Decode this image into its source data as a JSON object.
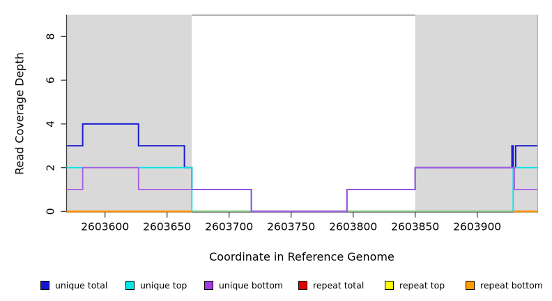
{
  "figure": {
    "xlabel": "Coordinate in Reference Genome",
    "ylabel": "Read Coverage Depth"
  },
  "legend": {
    "items": [
      {
        "label": "unique total",
        "color": "#1515D3"
      },
      {
        "label": "unique top",
        "color": "#00E8E8"
      },
      {
        "label": "unique bottom",
        "color": "#A23BE0"
      },
      {
        "label": "repeat total",
        "color": "#E00000"
      },
      {
        "label": "repeat top",
        "color": "#FFFF00"
      },
      {
        "label": "repeat bottom",
        "color": "#FF9D00"
      }
    ]
  },
  "chart_data": {
    "type": "line",
    "step": true,
    "title": "",
    "xlabel": "Coordinate in Reference Genome",
    "ylabel": "Read Coverage Depth",
    "xlim": [
      2603569,
      2603948.5
    ],
    "ylim": [
      0,
      9
    ],
    "x_ticks": [
      2603600,
      2603650,
      2603700,
      2603750,
      2603800,
      2603850,
      2603900
    ],
    "y_ticks": [
      0,
      2,
      4,
      6,
      8
    ],
    "grid": false,
    "legend_position": "bottom",
    "axis_color": "#3c3c3c",
    "box_top_color": "#888888",
    "shaded_regions": [
      {
        "x0": 2603569,
        "x1": 2603670,
        "color": "#D9D9D9"
      },
      {
        "x0": 2603850,
        "x1": 2603948.5,
        "color": "#D9D9D9"
      }
    ],
    "zero_overlap_line": {
      "x0": 2603670,
      "x1": 2603929,
      "y": 0,
      "color": "#7FCB7F"
    },
    "series": [
      {
        "name": "unique total",
        "color": "#1C1CCF",
        "width": 2,
        "segments": [
          [
            [
              2603569,
              3
            ],
            [
              2603582,
              4
            ],
            [
              2603627,
              3
            ],
            [
              2603664,
              2
            ],
            [
              2603670,
              1
            ],
            [
              2603718,
              0
            ],
            [
              2603795,
              1
            ],
            [
              2603850,
              2
            ],
            [
              2603928,
              3
            ],
            [
              2603929,
              2
            ],
            [
              2603931,
              3
            ],
            [
              2603948.5,
              3
            ]
          ]
        ]
      },
      {
        "name": "unique top",
        "color": "#00E5E5",
        "width": 1.8,
        "segments": [
          [
            [
              2603569,
              2
            ],
            [
              2603670,
              0
            ]
          ],
          [
            [
              2603929,
              0
            ],
            [
              2603929,
              2
            ],
            [
              2603948.5,
              2
            ]
          ]
        ]
      },
      {
        "name": "unique bottom",
        "color": "#A55BE0",
        "width": 1.8,
        "segments": [
          [
            [
              2603569,
              1
            ],
            [
              2603582,
              2
            ],
            [
              2603627,
              1
            ],
            [
              2603718,
              0
            ],
            [
              2603795,
              1
            ],
            [
              2603850,
              2
            ],
            [
              2603930,
              1
            ],
            [
              2603948.5,
              1
            ]
          ]
        ]
      },
      {
        "name": "repeat total",
        "color": "#E00000",
        "width": 1.8,
        "segments": [
          [
            [
              2603569,
              0
            ],
            [
              2603670,
              0
            ]
          ],
          [
            [
              2603929,
              0
            ],
            [
              2603948.5,
              0
            ]
          ]
        ]
      },
      {
        "name": "repeat top",
        "color": "#FFFF00",
        "width": 1.8,
        "segments": [
          [
            [
              2603569,
              0
            ],
            [
              2603670,
              0
            ]
          ],
          [
            [
              2603929,
              0
            ],
            [
              2603948.5,
              0
            ]
          ]
        ]
      },
      {
        "name": "repeat bottom",
        "color": "#FF9100",
        "width": 2.4,
        "segments": [
          [
            [
              2603569,
              0
            ],
            [
              2603670,
              0
            ]
          ],
          [
            [
              2603929,
              0
            ],
            [
              2603948.5,
              0
            ]
          ]
        ]
      }
    ]
  }
}
